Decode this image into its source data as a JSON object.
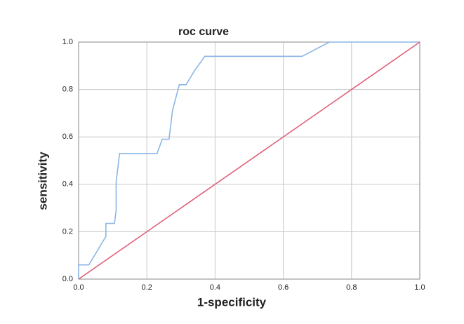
{
  "chart_data": {
    "type": "line",
    "title": "roc curve",
    "x_label": "1-specificity",
    "y_label": "sensitivity",
    "xlim": [
      0,
      1
    ],
    "ylim": [
      0,
      1
    ],
    "xticks": [
      {
        "value": 0,
        "label": "0.0"
      },
      {
        "value": 0.2,
        "label": "0.2"
      },
      {
        "value": 0.4,
        "label": "0.4"
      },
      {
        "value": 0.6,
        "label": "0.6"
      },
      {
        "value": 0.8,
        "label": "0.8"
      },
      {
        "value": 1,
        "label": "1.0"
      }
    ],
    "yticks": [
      {
        "value": 0,
        "label": "0.0"
      },
      {
        "value": 0.2,
        "label": "0.2"
      },
      {
        "value": 0.4,
        "label": "0.4"
      },
      {
        "value": 0.6,
        "label": "0.6"
      },
      {
        "value": 0.8,
        "label": "0.8"
      },
      {
        "value": 1,
        "label": "1.0"
      }
    ],
    "grid": true,
    "series": [
      {
        "color": "#8cb6e6",
        "x": [
          0,
          0,
          0.03,
          0.08,
          0.08,
          0.105,
          0.11,
          0.11,
          0.12,
          0.23,
          0.245,
          0.265,
          0.27,
          0.275,
          0.295,
          0.315,
          0.34,
          0.37,
          0.655,
          0.735,
          1.0
        ],
        "values": [
          0,
          0.06,
          0.06,
          0.18,
          0.235,
          0.235,
          0.29,
          0.41,
          0.53,
          0.53,
          0.59,
          0.59,
          0.65,
          0.71,
          0.82,
          0.82,
          0.88,
          0.94,
          0.94,
          1.0,
          1.0
        ]
      },
      {
        "color": "#e0607a",
        "x": [
          0,
          1
        ],
        "values": [
          0,
          1
        ]
      }
    ]
  }
}
